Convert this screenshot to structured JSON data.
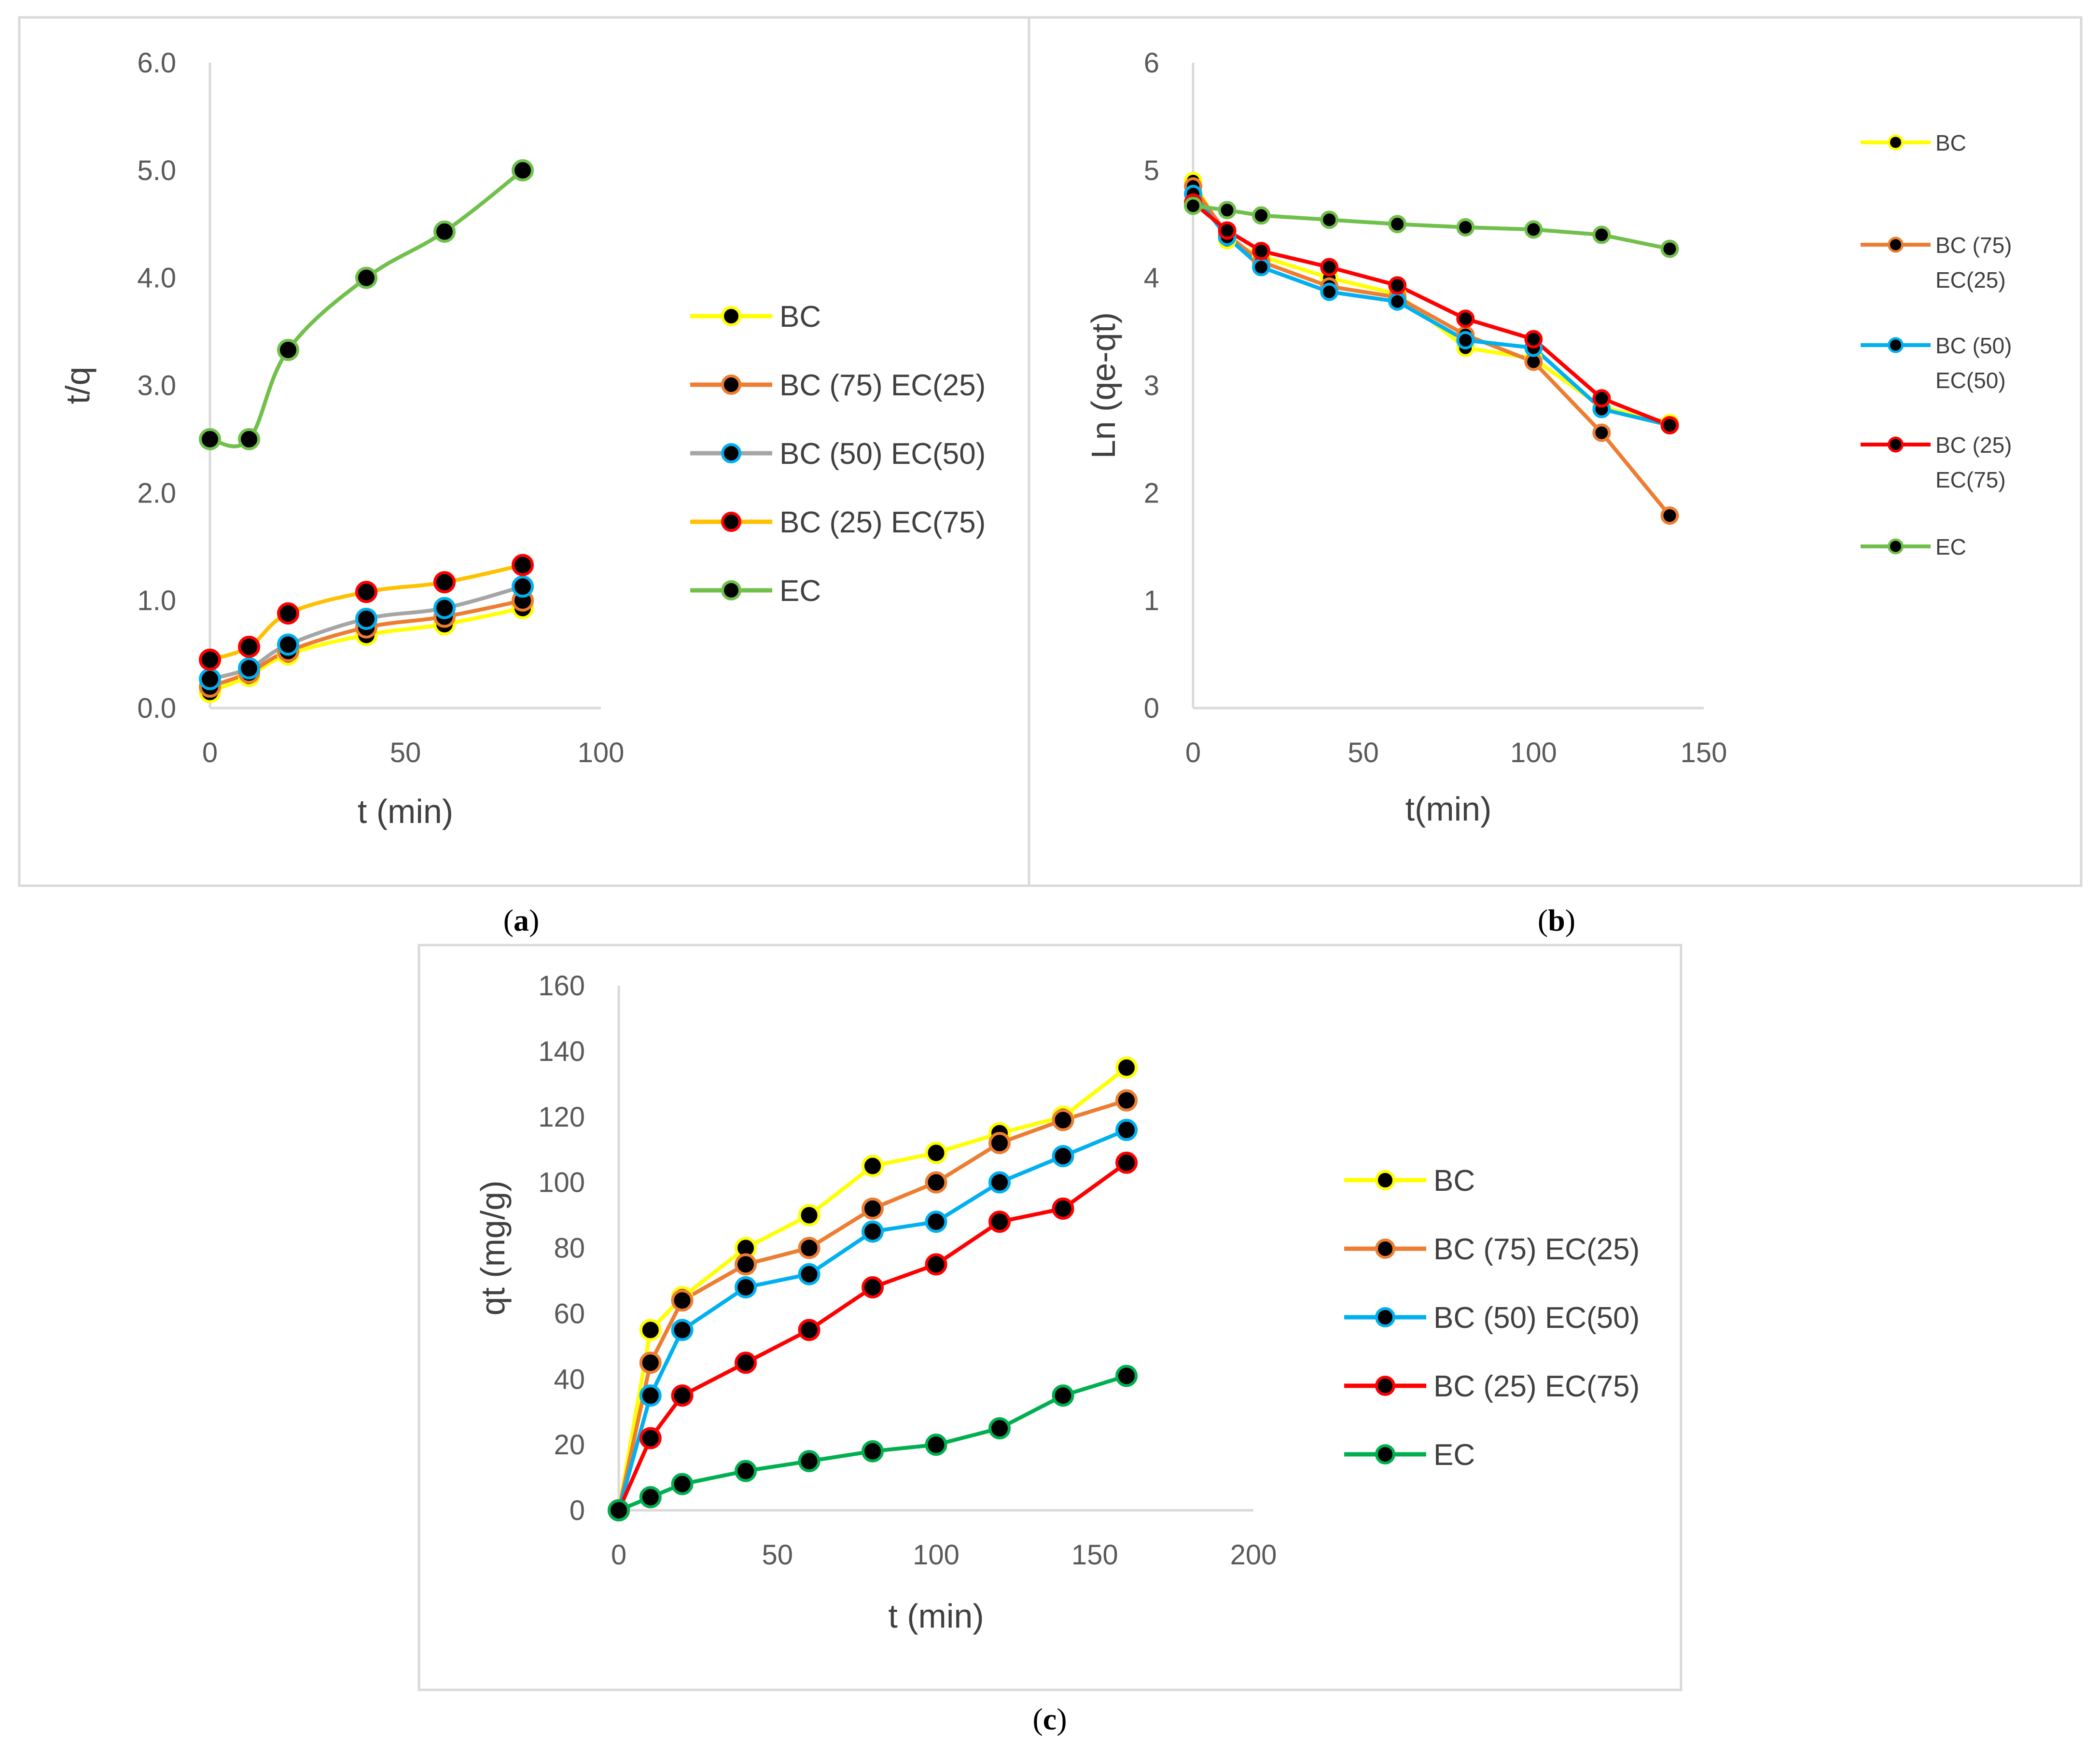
{
  "colors": {
    "BC": "#FFFF00",
    "BC75": "#ED7D31",
    "BC50": "#00B0F0",
    "BC50_a": "#A5A5A5",
    "BC25": "#FF0000",
    "BC25_a": "#FFC000",
    "EC": "#70C04B",
    "EC_c": "#00B050",
    "marker": "#000000",
    "axis": "#D9D9D9",
    "border": "#D9D9D9"
  },
  "panel_labels": {
    "a": "a",
    "b": "b",
    "c": "c"
  },
  "chart_data": [
    {
      "id": "a",
      "type": "line",
      "xlabel": "t (min)",
      "ylabel": "t/q",
      "xlim": [
        0,
        100
      ],
      "ylim": [
        0,
        6
      ],
      "xticks": [
        "0",
        "50",
        "100"
      ],
      "yticks": [
        "0.0",
        "1.0",
        "2.0",
        "3.0",
        "4.0",
        "5.0",
        "6.0"
      ],
      "legend_position": "right",
      "series": [
        {
          "name": "BC",
          "color": "#FFFF00",
          "x": [
            0,
            10,
            20,
            40,
            60,
            80
          ],
          "y": [
            0.15,
            0.3,
            0.5,
            0.68,
            0.78,
            0.93
          ]
        },
        {
          "name": "BC (75) EC(25)",
          "color": "#ED7D31",
          "x": [
            0,
            10,
            20,
            40,
            60,
            80
          ],
          "y": [
            0.2,
            0.33,
            0.53,
            0.75,
            0.85,
            1.0
          ]
        },
        {
          "name": "BC (50) EC(50)",
          "color": "#A5A5A5",
          "marker_color": "#00B0F0",
          "x": [
            0,
            10,
            20,
            40,
            60,
            80
          ],
          "y": [
            0.27,
            0.37,
            0.59,
            0.83,
            0.93,
            1.13
          ]
        },
        {
          "name": "BC (25) EC(75)",
          "color": "#FFC000",
          "marker_color": "#FF0000",
          "x": [
            0,
            10,
            20,
            40,
            60,
            80
          ],
          "y": [
            0.45,
            0.57,
            0.88,
            1.08,
            1.17,
            1.33
          ]
        },
        {
          "name": "EC",
          "color": "#70C04B",
          "x": [
            0,
            10,
            20,
            40,
            60,
            80
          ],
          "y": [
            2.5,
            2.5,
            3.33,
            4.0,
            4.43,
            5.0
          ]
        }
      ]
    },
    {
      "id": "b",
      "type": "line",
      "xlabel": "t(min)",
      "ylabel": "Ln (qe-qt)",
      "xlim": [
        0,
        150
      ],
      "ylim": [
        0,
        6
      ],
      "xticks": [
        "0",
        "50",
        "100",
        "150"
      ],
      "yticks": [
        "0",
        "1",
        "2",
        "3",
        "4",
        "5",
        "6"
      ],
      "legend_position": "right",
      "series": [
        {
          "name": "BC",
          "name_lines": [
            "BC"
          ],
          "color": "#FFFF00",
          "x": [
            0,
            10,
            20,
            40,
            60,
            80,
            100,
            120,
            140
          ],
          "y": [
            4.9,
            4.35,
            4.2,
            4.0,
            3.85,
            3.35,
            3.25,
            2.8,
            2.65
          ]
        },
        {
          "name": "BC (75) EC(25)",
          "name_lines": [
            "BC (75)",
            "EC(25)"
          ],
          "color": "#ED7D31",
          "x": [
            0,
            10,
            20,
            40,
            60,
            80,
            100,
            120,
            140
          ],
          "y": [
            4.85,
            4.4,
            4.15,
            3.92,
            3.82,
            3.47,
            3.22,
            2.56,
            1.79
          ]
        },
        {
          "name": "BC (50) EC(50)",
          "name_lines": [
            "BC (50)",
            "EC(50)"
          ],
          "color": "#00B0F0",
          "x": [
            0,
            10,
            20,
            40,
            60,
            80,
            100,
            120,
            140
          ],
          "y": [
            4.78,
            4.38,
            4.1,
            3.87,
            3.78,
            3.42,
            3.35,
            2.78,
            2.63
          ]
        },
        {
          "name": "BC (25) EC(75)",
          "name_lines": [
            "BC (25)",
            "EC(75)"
          ],
          "color": "#FF0000",
          "x": [
            0,
            10,
            20,
            40,
            60,
            80,
            100,
            120,
            140
          ],
          "y": [
            4.7,
            4.44,
            4.25,
            4.1,
            3.93,
            3.62,
            3.43,
            2.88,
            2.63
          ]
        },
        {
          "name": "EC",
          "name_lines": [
            "EC"
          ],
          "color": "#70C04B",
          "x": [
            0,
            10,
            20,
            40,
            60,
            80,
            100,
            120,
            140
          ],
          "y": [
            4.67,
            4.63,
            4.58,
            4.54,
            4.5,
            4.47,
            4.45,
            4.4,
            4.27
          ]
        }
      ]
    },
    {
      "id": "c",
      "type": "line",
      "xlabel": "t (min)",
      "ylabel": "qt (mg/g)",
      "xlim": [
        0,
        200
      ],
      "ylim": [
        0,
        160
      ],
      "xticks": [
        "0",
        "50",
        "100",
        "150",
        "200"
      ],
      "yticks": [
        "0",
        "20",
        "40",
        "60",
        "80",
        "100",
        "120",
        "140",
        "160"
      ],
      "legend_position": "right",
      "series": [
        {
          "name": "BC",
          "color": "#FFFF00",
          "x": [
            0,
            10,
            20,
            40,
            60,
            80,
            100,
            120,
            140,
            160
          ],
          "y": [
            0,
            55,
            65,
            80,
            90,
            105,
            109,
            115,
            120,
            135
          ]
        },
        {
          "name": "BC (75) EC(25)",
          "color": "#ED7D31",
          "x": [
            0,
            10,
            20,
            40,
            60,
            80,
            100,
            120,
            140,
            160
          ],
          "y": [
            0,
            45,
            64,
            75,
            80,
            92,
            100,
            112,
            119,
            125
          ]
        },
        {
          "name": "BC (50) EC(50)",
          "color": "#00B0F0",
          "x": [
            0,
            10,
            20,
            40,
            60,
            80,
            100,
            120,
            140,
            160
          ],
          "y": [
            0,
            35,
            55,
            68,
            72,
            85,
            88,
            100,
            108,
            116
          ]
        },
        {
          "name": "BC (25) EC(75)",
          "color": "#FF0000",
          "x": [
            0,
            10,
            20,
            40,
            60,
            80,
            100,
            120,
            140,
            160
          ],
          "y": [
            0,
            22,
            35,
            45,
            55,
            68,
            75,
            88,
            92,
            106
          ]
        },
        {
          "name": "EC",
          "color": "#00B050",
          "x": [
            0,
            10,
            20,
            40,
            60,
            80,
            100,
            120,
            140,
            160
          ],
          "y": [
            0,
            4,
            8,
            12,
            15,
            18,
            20,
            25,
            35,
            41
          ]
        }
      ]
    }
  ]
}
